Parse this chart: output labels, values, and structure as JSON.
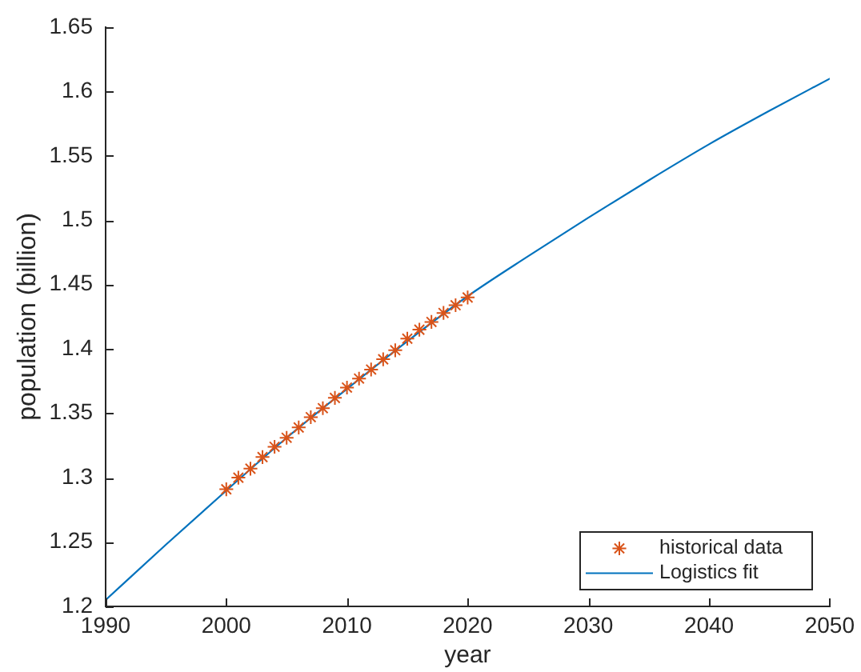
{
  "chart_data": {
    "type": "scatter",
    "xlabel": "year",
    "ylabel": "population (billion)",
    "xlim": [
      1990,
      2050
    ],
    "xticks": [
      1990,
      2000,
      2010,
      2020,
      2030,
      2040,
      2050
    ],
    "ylim": [
      1.2,
      1.65
    ],
    "yticks": [
      1.2,
      1.25,
      1.3,
      1.35,
      1.4,
      1.45,
      1.5,
      1.55,
      1.6,
      1.65
    ],
    "grid": false,
    "legend": "bottom right",
    "series": [
      {
        "name": "historical data",
        "marker": "cross",
        "color": "#d95319",
        "x": [
          2000,
          2001,
          2002,
          2003,
          2004,
          2005,
          2006,
          2007,
          2008,
          2009,
          2010,
          2011,
          2012,
          2013,
          2014,
          2015,
          2016,
          2017,
          2018,
          2019,
          2020
        ],
        "values": [
          1.291,
          1.3,
          1.307,
          1.316,
          1.324,
          1.331,
          1.339,
          1.347,
          1.354,
          1.362,
          1.37,
          1.377,
          1.384,
          1.392,
          1.399,
          1.408,
          1.415,
          1.421,
          1.428,
          1.434,
          1.44
        ]
      },
      {
        "name": "Logistics fit",
        "type": "line",
        "marker": "none",
        "color": "#0072bd",
        "x": [
          1990,
          1995,
          2000,
          2005,
          2010,
          2015,
          2020,
          2025,
          2030,
          2035,
          2040,
          2045,
          2050
        ],
        "values": [
          1.205,
          1.248,
          1.29,
          1.331,
          1.369,
          1.406,
          1.441,
          1.472,
          1.502,
          1.531,
          1.559,
          1.585,
          1.61
        ]
      }
    ]
  }
}
